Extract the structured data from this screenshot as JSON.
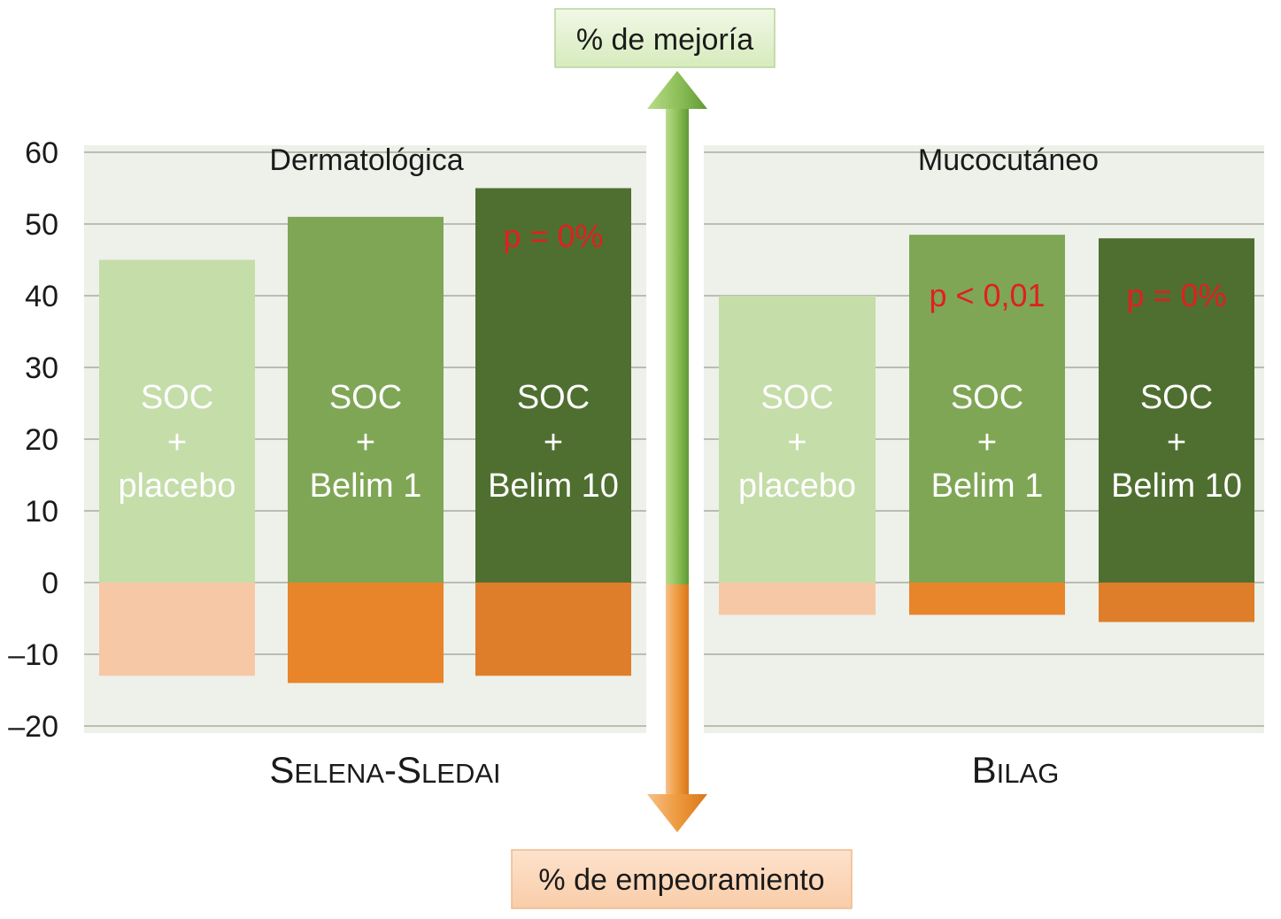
{
  "chart_data": {
    "type": "bar",
    "y_ticks": [
      60,
      50,
      40,
      30,
      20,
      10,
      0,
      -10,
      -20
    ],
    "y_tick_labels": [
      "60",
      "50",
      "40",
      "30",
      "20",
      "10",
      "0",
      "–10",
      "–20"
    ],
    "ylim": [
      -20,
      60
    ],
    "grid": true,
    "arrow_top_label": "% de mejoría",
    "arrow_bottom_label": "% de empeoramiento",
    "colors": {
      "placebo_pos": "#c5dda9",
      "belim1_pos": "#7fa655",
      "belim10_pos": "#4f6f30",
      "placebo_neg": "#f7c8a6",
      "belim1_neg": "#e8842a",
      "belim10_neg": "#de7e2a",
      "pvalue": "#e02020",
      "panel_bg": "#eef0ea",
      "arrow_up": "#8fc05a",
      "arrow_down": "#ee9a3e"
    },
    "panels": [
      {
        "title": "Dermatológica",
        "group_label": {
          "first": "S",
          "first_rest": "ELENA",
          "sep": "-",
          "second": "S",
          "second_rest": "LEDAI"
        },
        "bars": [
          {
            "label_lines": [
              "SOC",
              "+",
              "placebo"
            ],
            "improvement": 45,
            "worsening": -13,
            "pvalue": ""
          },
          {
            "label_lines": [
              "SOC",
              "+",
              "Belim 1"
            ],
            "improvement": 51,
            "worsening": -14,
            "pvalue": ""
          },
          {
            "label_lines": [
              "SOC",
              "+",
              "Belim 10"
            ],
            "improvement": 55,
            "worsening": -13,
            "pvalue": "p = 0%"
          }
        ]
      },
      {
        "title": "Mucocutáneo",
        "group_label": {
          "first": "B",
          "first_rest": "ILAG",
          "sep": "",
          "second": "",
          "second_rest": ""
        },
        "bars": [
          {
            "label_lines": [
              "SOC",
              "+",
              "placebo"
            ],
            "improvement": 40,
            "worsening": -4.5,
            "pvalue": ""
          },
          {
            "label_lines": [
              "SOC",
              "+",
              "Belim 1"
            ],
            "improvement": 48.5,
            "worsening": -4.5,
            "pvalue": "p < 0,01"
          },
          {
            "label_lines": [
              "SOC",
              "+",
              "Belim 10"
            ],
            "improvement": 48,
            "worsening": -5.5,
            "pvalue": "p = 0%"
          }
        ]
      }
    ]
  }
}
